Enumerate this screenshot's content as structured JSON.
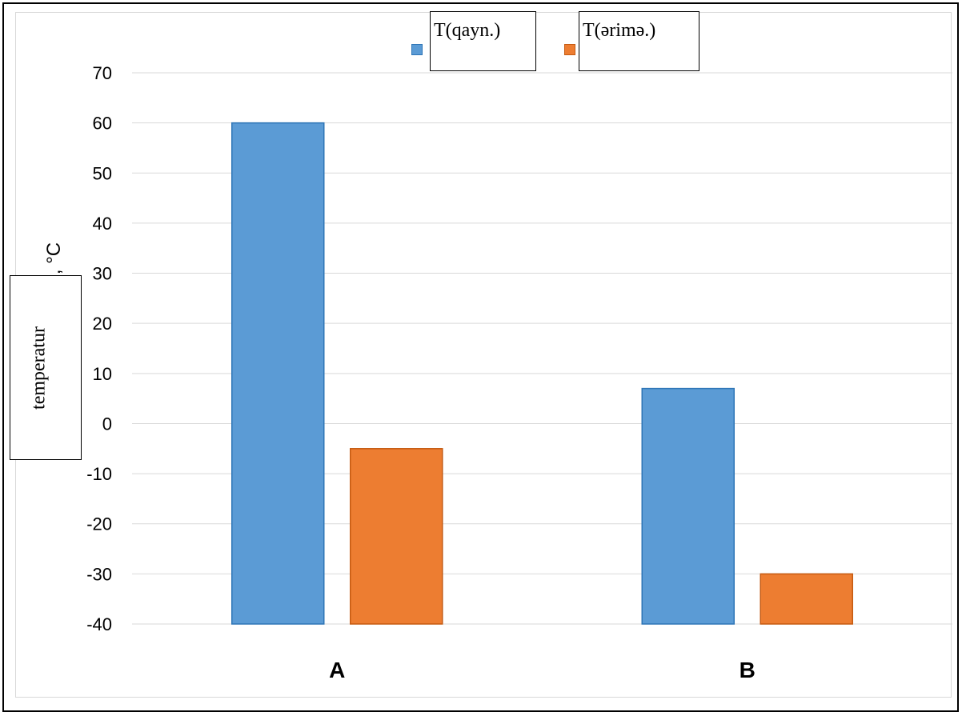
{
  "chart_data": {
    "type": "bar",
    "categories": [
      "A",
      "B"
    ],
    "series": [
      {
        "name": "T(qayn.)",
        "values": [
          60,
          7
        ],
        "color": "#5b9bd5"
      },
      {
        "name": "T(ərimə.)",
        "values": [
          -5,
          -30
        ],
        "color": "#ed7d31"
      }
    ],
    "ylim": [
      -40,
      70
    ],
    "yticks": [
      70,
      60,
      50,
      40,
      30,
      20,
      10,
      0,
      -10,
      -20,
      -30,
      -40
    ],
    "ylabel_main": "temperatur",
    "ylabel_unit": ", °C",
    "grid": true,
    "legend": "top-center"
  }
}
